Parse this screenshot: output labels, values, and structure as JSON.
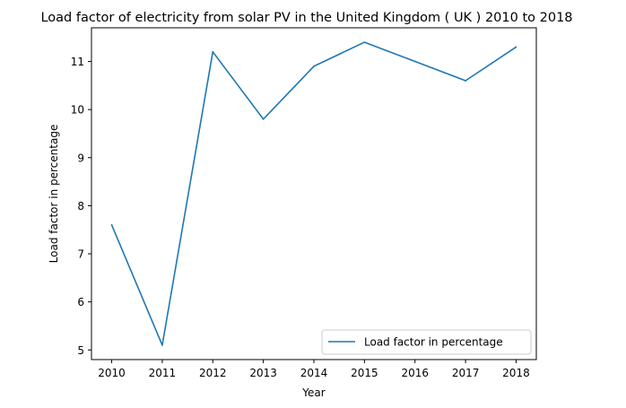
{
  "chart_data": {
    "type": "line",
    "title": "Load factor of electricity from solar PV in the United Kingdom ( UK ) 2010 to 2018",
    "xlabel": "Year",
    "ylabel": "Load factor in percentage",
    "x": [
      2010,
      2011,
      2012,
      2013,
      2014,
      2015,
      2016,
      2017,
      2018
    ],
    "x_ticks": [
      "2010",
      "2011",
      "2012",
      "2013",
      "2014",
      "2015",
      "2016",
      "2017",
      "2018"
    ],
    "y_ticks": [
      "5",
      "6",
      "7",
      "8",
      "9",
      "10",
      "11"
    ],
    "series": [
      {
        "name": "Load factor in percentage",
        "values": [
          7.6,
          5.1,
          11.2,
          9.8,
          10.9,
          11.4,
          11.0,
          10.6,
          11.3
        ],
        "color": "#1f77b4"
      }
    ],
    "xlim": [
      2009.6,
      2018.4
    ],
    "ylim": [
      4.8,
      11.7
    ],
    "grid": false,
    "legend_position": "lower right"
  }
}
